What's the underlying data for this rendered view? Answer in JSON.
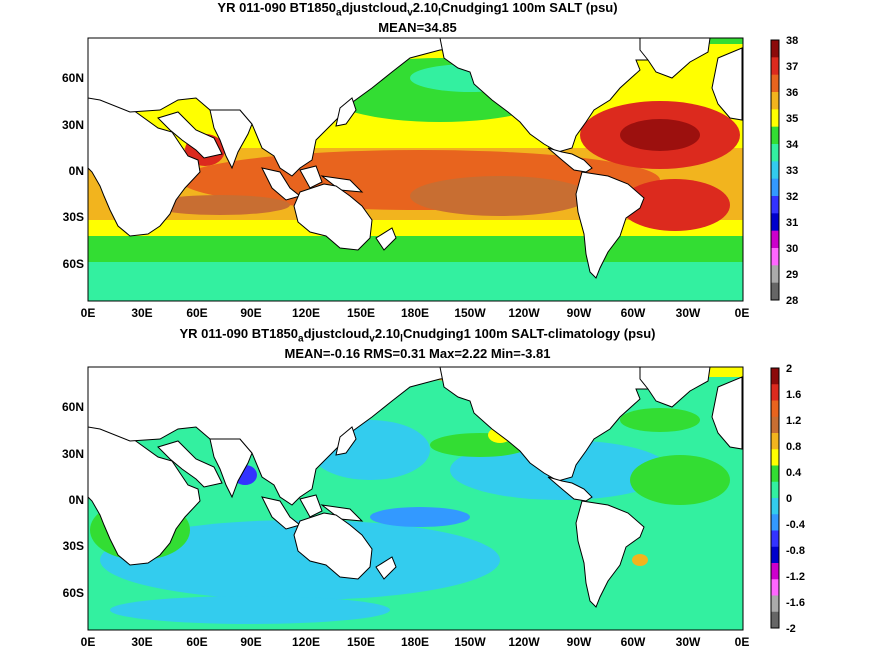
{
  "panels": [
    {
      "title_parts": [
        "YR 011-090 BT1850",
        "a",
        "djustcloud",
        "v",
        "2.10",
        "l",
        "Cnudging1 100m SALT (psu)"
      ],
      "subtitle": "MEAN=34.85",
      "x_ticks": [
        "0E",
        "30E",
        "60E",
        "90E",
        "120E",
        "150E",
        "180E",
        "150W",
        "120W",
        "90W",
        "60W",
        "30W",
        "0E"
      ],
      "y_ticks": [
        "60N",
        "30N",
        "0N",
        "30S",
        "60S"
      ],
      "colorbar": {
        "labels": [
          "38",
          "37",
          "36",
          "35",
          "34",
          "33",
          "32",
          "31",
          "30",
          "29",
          "28"
        ],
        "colors": [
          "#8c0a0a",
          "#dc2a1e",
          "#e8641e",
          "#f2b41e",
          "#ffff00",
          "#33dd33",
          "#33f0a0",
          "#33ccee",
          "#3399ff",
          "#3333ff",
          "#0000cc",
          "#cc00cc",
          "#ff66ff",
          "#aaaaaa",
          "#666666"
        ]
      }
    },
    {
      "title_parts": [
        "YR 011-090 BT1850",
        "a",
        "djustcloud",
        "v",
        "2.10",
        "l",
        "Cnudging1 100m SALT-climatology (psu)"
      ],
      "subtitle": "MEAN=-0.16   RMS=0.31   Max=2.22   Min=-3.81",
      "x_ticks": [
        "0E",
        "30E",
        "60E",
        "90E",
        "120E",
        "150E",
        "180E",
        "150W",
        "120W",
        "90W",
        "60W",
        "30W",
        "0E"
      ],
      "y_ticks": [
        "60N",
        "30N",
        "0N",
        "30S",
        "60S"
      ],
      "colorbar": {
        "labels": [
          "2",
          "1.6",
          "1.2",
          "0.8",
          "0.4",
          "0",
          "-0.4",
          "-0.8",
          "-1.2",
          "-1.6",
          "-2"
        ],
        "colors": [
          "#8c0a0a",
          "#dc2a1e",
          "#e8641e",
          "#c86e32",
          "#f2b41e",
          "#ffff00",
          "#33dd33",
          "#33f0a0",
          "#33ccee",
          "#3399ff",
          "#3333ff",
          "#0000cc",
          "#cc00cc",
          "#ff66ff",
          "#aaaaaa",
          "#666666"
        ]
      }
    }
  ]
}
